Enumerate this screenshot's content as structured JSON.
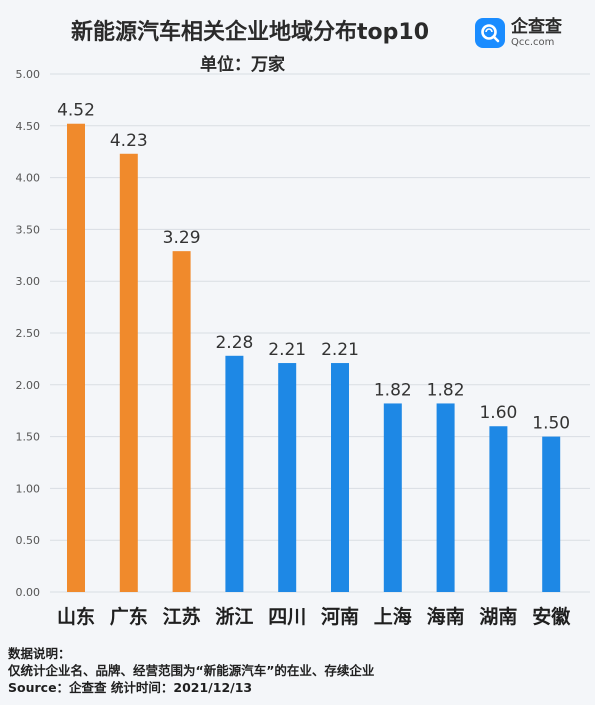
{
  "header": {
    "title": "新能源汽车相关企业地域分布top10",
    "unit": "单位：万家"
  },
  "brand": {
    "name_cn": "企查查",
    "name_en": "Qcc.com",
    "color": "#1a8cff"
  },
  "colors": {
    "orange": "#f08a2c",
    "blue": "#1e88e5"
  },
  "chart_data": {
    "type": "bar",
    "title": "新能源汽车相关企业地域分布top10",
    "subtitle": "单位：万家",
    "categories": [
      "山东",
      "广东",
      "江苏",
      "浙江",
      "四川",
      "河南",
      "上海",
      "海南",
      "湖南",
      "安徽"
    ],
    "values": [
      4.52,
      4.23,
      3.29,
      2.28,
      2.21,
      2.21,
      1.82,
      1.82,
      1.6,
      1.5
    ],
    "value_labels": [
      "4.52",
      "4.23",
      "3.29",
      "2.28",
      "2.21",
      "2.21",
      "1.82",
      "1.82",
      "1.60",
      "1.50"
    ],
    "bar_colors": [
      "#f08a2c",
      "#f08a2c",
      "#f08a2c",
      "#1e88e5",
      "#1e88e5",
      "#1e88e5",
      "#1e88e5",
      "#1e88e5",
      "#1e88e5",
      "#1e88e5"
    ],
    "ylim": [
      0,
      5
    ],
    "yticks": [
      "0.00",
      "0.50",
      "1.00",
      "1.50",
      "2.00",
      "2.50",
      "3.00",
      "3.50",
      "4.00",
      "4.50",
      "5.00"
    ],
    "grid": true
  },
  "footer": {
    "line1": "数据说明：",
    "line2": "仅统计企业名、品牌、经营范围为“新能源汽车”的在业、存续企业",
    "line3": "Source：企查查   统计时间：2021/12/13"
  }
}
